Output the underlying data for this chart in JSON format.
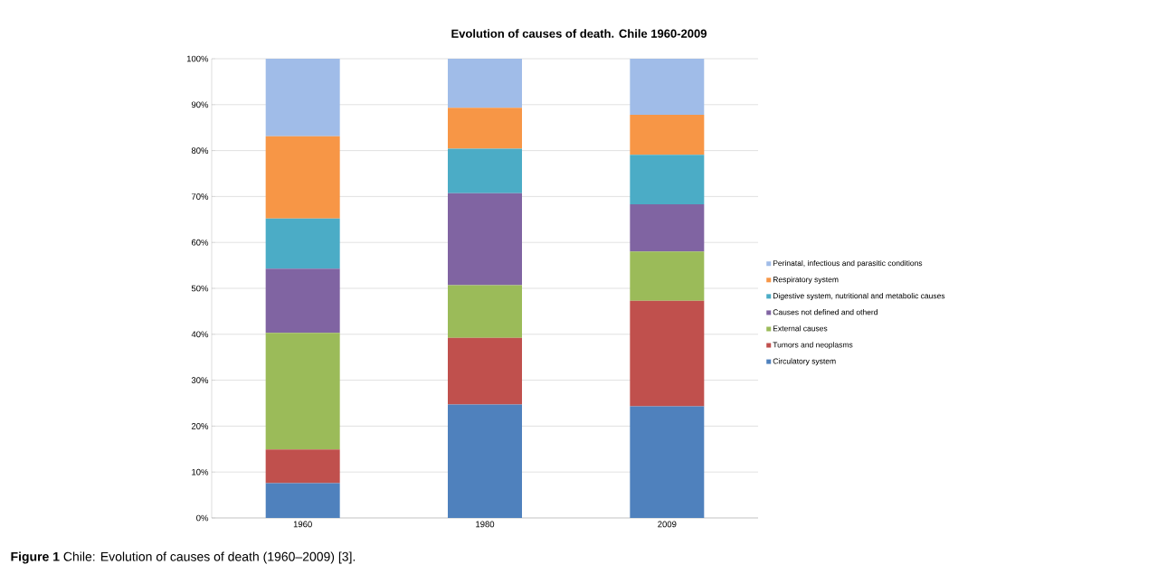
{
  "chart_data": {
    "type": "bar",
    "stacked": true,
    "title": "Evolution of causes of death. Chile 1960-2009",
    "categories": [
      "1960",
      "1980",
      "2009"
    ],
    "series": [
      {
        "name": "Circulatory system",
        "color": "#4f81bd",
        "values": [
          7.6,
          24.7,
          24.3
        ]
      },
      {
        "name": "Tumors and neoplasms",
        "color": "#c0504d",
        "values": [
          7.3,
          14.5,
          23.0
        ]
      },
      {
        "name": "External causes",
        "color": "#9bbb59",
        "values": [
          25.4,
          11.5,
          10.7
        ]
      },
      {
        "name": "Causes not defined and otherd",
        "color": "#8064a2",
        "values": [
          14.0,
          20.0,
          10.3
        ]
      },
      {
        "name": "Digestive system, nutritional and metabolic causes",
        "color": "#4bacc6",
        "values": [
          10.9,
          9.7,
          10.8
        ]
      },
      {
        "name": "Respiratory system",
        "color": "#f79646",
        "values": [
          17.9,
          8.9,
          8.7
        ]
      },
      {
        "name": "Perinatal, infectious and parasitic conditions",
        "color": "#a0bce8",
        "values": [
          16.9,
          10.7,
          12.2
        ]
      }
    ],
    "ylim": [
      0,
      100
    ],
    "yticks": [
      {
        "value": 0,
        "label": "0%"
      },
      {
        "value": 10,
        "label": "10%"
      },
      {
        "value": 20,
        "label": "20%"
      },
      {
        "value": 30,
        "label": "30%"
      },
      {
        "value": 40,
        "label": "40%"
      },
      {
        "value": 50,
        "label": "50%"
      },
      {
        "value": 60,
        "label": "60%"
      },
      {
        "value": 70,
        "label": "70%"
      },
      {
        "value": 80,
        "label": "80%"
      },
      {
        "value": 90,
        "label": "90%"
      },
      {
        "value": 100,
        "label": "100%"
      }
    ],
    "grid": "y",
    "legend": "right",
    "annotations": [
      "**Figure 1** Chile: Evolution of causes of death (1960–2009) [3]."
    ]
  }
}
